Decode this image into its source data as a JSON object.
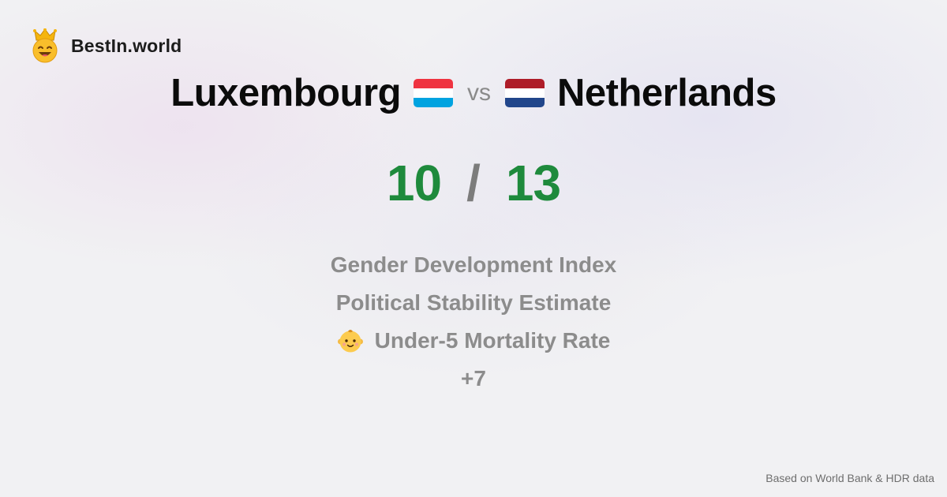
{
  "brand": {
    "name": "BestIn.world",
    "logo_icon": "crowned-smiley-icon"
  },
  "comparison": {
    "country_a": {
      "name": "Luxembourg",
      "flag_icon": "luxembourg-flag-icon",
      "flag_colors": [
        "#EF3340",
        "#FFFFFF",
        "#00A3E0"
      ]
    },
    "vs_label": "vs",
    "country_b": {
      "name": "Netherlands",
      "flag_icon": "netherlands-flag-icon",
      "flag_colors": [
        "#AE1C28",
        "#FFFFFF",
        "#21468B"
      ]
    }
  },
  "score": {
    "a": "10",
    "separator": "/",
    "b": "13",
    "color": "#1e8a3c"
  },
  "metrics": [
    {
      "label": "Gender Development Index"
    },
    {
      "label": "Political Stability Estimate"
    },
    {
      "label": "Under-5 Mortality Rate",
      "icon": "baby-icon"
    }
  ],
  "more_label": "+7",
  "footer": {
    "source": "Based on World Bank & HDR data"
  }
}
